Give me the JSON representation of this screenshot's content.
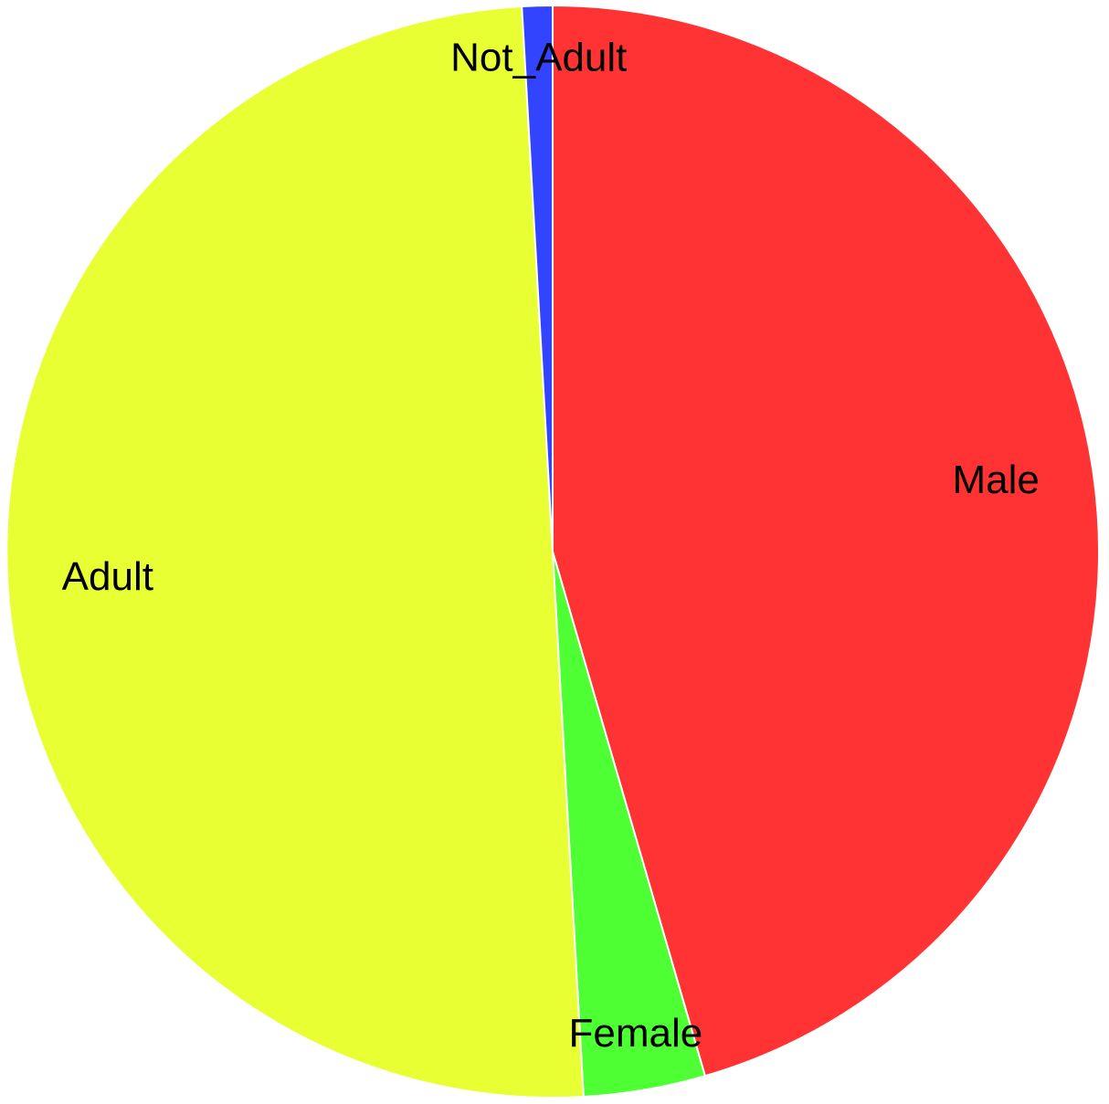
{
  "chart_data": {
    "type": "pie",
    "title": "",
    "start_angle": "12 o'clock",
    "direction": "clockwise",
    "slices": [
      {
        "id": "male",
        "label": "Male",
        "value": 45.5,
        "color": "#ff3333"
      },
      {
        "id": "female",
        "label": "Female",
        "value": 3.6,
        "color": "#4dff33"
      },
      {
        "id": "adult",
        "label": "Adult",
        "value": 50.0,
        "color": "#e8ff33"
      },
      {
        "id": "not-adult",
        "label": "Not_Adult",
        "value": 0.9,
        "color": "#3344ff"
      }
    ],
    "legend": "none",
    "labels": "inside"
  }
}
